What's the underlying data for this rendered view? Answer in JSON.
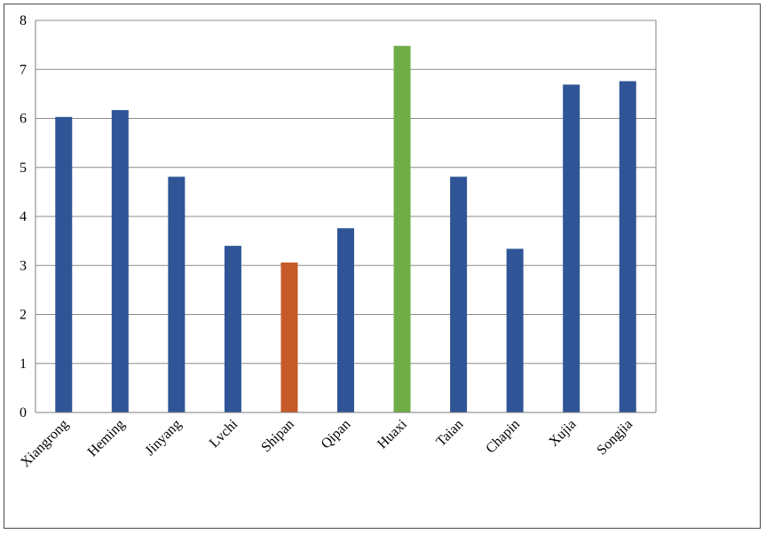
{
  "chart_data": {
    "type": "bar",
    "categories": [
      "Xiangrong",
      "Heming",
      "Jinyang",
      "Lvchi",
      "Shipan",
      "Qipan",
      "Huaxi",
      "Taian",
      "Chapin",
      "Xujia",
      "Songjia"
    ],
    "values": [
      6.03,
      6.17,
      4.81,
      3.4,
      3.06,
      3.76,
      7.48,
      4.81,
      3.34,
      6.69,
      6.76
    ],
    "colors": [
      "#2f5597",
      "#2f5597",
      "#2f5597",
      "#2f5597",
      "#c55a28",
      "#2f5597",
      "#70ad47",
      "#2f5597",
      "#2f5597",
      "#2f5597",
      "#2f5597"
    ],
    "title": "",
    "xlabel": "",
    "ylabel": "",
    "ylim": [
      0,
      8
    ],
    "yticks": [
      "0",
      "1",
      "2",
      "3",
      "4",
      "5",
      "6",
      "7",
      "8"
    ],
    "grid": true,
    "legend": "none"
  }
}
